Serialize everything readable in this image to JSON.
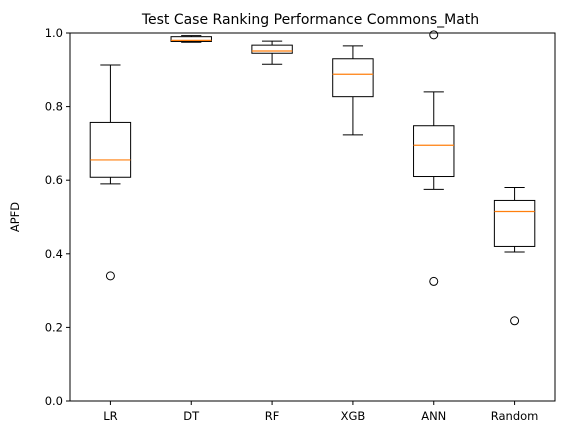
{
  "chart_data": {
    "type": "box",
    "title": "Test Case Ranking Performance Commons_Math",
    "xlabel": "",
    "ylabel": "APFD",
    "ylim": [
      0.0,
      1.0
    ],
    "yticks": [
      0.0,
      0.2,
      0.4,
      0.6,
      0.8,
      1.0
    ],
    "ytick_labels": [
      "0.0",
      "0.2",
      "0.4",
      "0.6",
      "0.8",
      "1.0"
    ],
    "grid": false,
    "categories": [
      "LR",
      "DT",
      "RF",
      "XGB",
      "ANN",
      "Random"
    ],
    "boxes": [
      {
        "whisker_low": 0.59,
        "q1": 0.608,
        "median": 0.655,
        "q3": 0.757,
        "whisker_high": 0.913,
        "outliers": [
          0.34
        ]
      },
      {
        "whisker_low": 0.975,
        "q1": 0.977,
        "median": 0.98,
        "q3": 0.99,
        "whisker_high": 0.993,
        "outliers": []
      },
      {
        "whisker_low": 0.915,
        "q1": 0.945,
        "median": 0.951,
        "q3": 0.967,
        "whisker_high": 0.978,
        "outliers": []
      },
      {
        "whisker_low": 0.723,
        "q1": 0.827,
        "median": 0.888,
        "q3": 0.93,
        "whisker_high": 0.965,
        "outliers": []
      },
      {
        "whisker_low": 0.575,
        "q1": 0.61,
        "median": 0.695,
        "q3": 0.748,
        "whisker_high": 0.84,
        "outliers": [
          0.325,
          0.995
        ]
      },
      {
        "whisker_low": 0.405,
        "q1": 0.42,
        "median": 0.515,
        "q3": 0.545,
        "whisker_high": 0.58,
        "outliers": [
          0.218
        ]
      }
    ],
    "colors": {
      "box": "#000000",
      "median": "#ff7f0e",
      "outlier": "#000000"
    }
  }
}
